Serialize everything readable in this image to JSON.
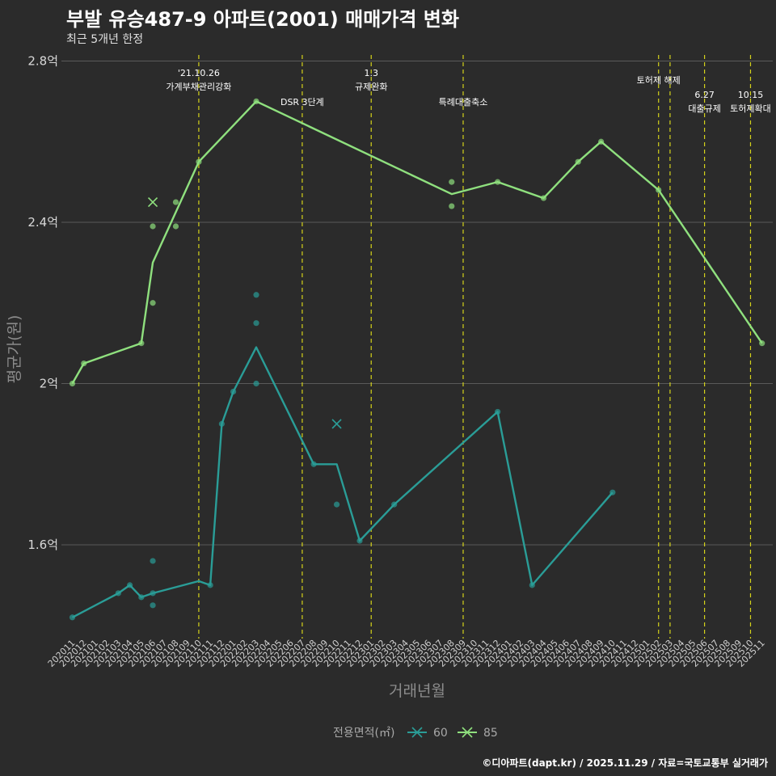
{
  "title": "부발 유승487-9 아파트(2001) 매매가격 변화",
  "subtitle": "최근 5개년 한정",
  "footer": "©디아파트(dapt.kr) / 2025.11.29 / 자료=국토교통부 실거래가",
  "chart_data": {
    "type": "line",
    "title": "부발 유승487-9 아파트(2001) 매매가격 변화",
    "subtitle": "최근 5개년 한정",
    "xlabel": "거래년월",
    "ylabel": "평균가(원)",
    "ylim": [
      1.38,
      2.8
    ],
    "y_ticks": [
      {
        "value": 1.6,
        "label": "1.6억"
      },
      {
        "value": 2.0,
        "label": "2억"
      },
      {
        "value": 2.4,
        "label": "2.4억"
      },
      {
        "value": 2.8,
        "label": "2.8억"
      }
    ],
    "grid": true,
    "categories": [
      "202011",
      "202012",
      "202101",
      "202102",
      "202103",
      "202104",
      "202105",
      "202106",
      "202107",
      "202108",
      "202109",
      "202110",
      "202111",
      "202112",
      "202201",
      "202202",
      "202203",
      "202204",
      "202205",
      "202206",
      "202207",
      "202208",
      "202209",
      "202210",
      "202211",
      "202212",
      "202301",
      "202302",
      "202303",
      "202304",
      "202305",
      "202306",
      "202307",
      "202308",
      "202309",
      "202310",
      "202311",
      "202312",
      "202401",
      "202402",
      "202403",
      "202404",
      "202405",
      "202406",
      "202407",
      "202408",
      "202409",
      "202410",
      "202411",
      "202412",
      "202501",
      "202502",
      "202503",
      "202504",
      "202505",
      "202506",
      "202507",
      "202508",
      "202509",
      "202510",
      "202511"
    ],
    "events": [
      {
        "month": "202110",
        "lines": [
          "'21.10.26",
          "가계부채관리강화"
        ]
      },
      {
        "month": "202207",
        "lines": [
          "DSR 3단계"
        ]
      },
      {
        "month": "202301",
        "lines": [
          "1.3",
          "규제완화"
        ]
      },
      {
        "month": "202309",
        "lines": [
          "특례대출축소"
        ]
      },
      {
        "month": "202502",
        "lines": [
          "토허제 해제"
        ]
      },
      {
        "month": "202503",
        "lines": []
      },
      {
        "month": "202506",
        "lines": [
          "6.27",
          "대출규제"
        ]
      },
      {
        "month": "202510",
        "lines": [
          "10.15",
          "토허제확대"
        ]
      }
    ],
    "legend": {
      "title": "전용면적(㎡)",
      "position": "bottom"
    },
    "series": [
      {
        "name": "60",
        "color": "#2a9d97",
        "line": [
          [
            "202011",
            1.42
          ],
          [
            "202103",
            1.48
          ],
          [
            "202104",
            1.5
          ],
          [
            "202105",
            1.47
          ],
          [
            "202106",
            1.48
          ],
          [
            "202110",
            1.51
          ],
          [
            "202111",
            1.5
          ],
          [
            "202112",
            1.9
          ],
          [
            "202201",
            1.98
          ],
          [
            "202203",
            2.09
          ],
          [
            "202208",
            1.8
          ],
          [
            "202210",
            1.8
          ],
          [
            "202212",
            1.61
          ],
          [
            "202303",
            1.7
          ],
          [
            "202312",
            1.93
          ],
          [
            "202403",
            1.5
          ],
          [
            "202410",
            1.73
          ]
        ],
        "points": [
          [
            "202011",
            1.42
          ],
          [
            "202103",
            1.48
          ],
          [
            "202104",
            1.5
          ],
          [
            "202105",
            1.47
          ],
          [
            "202106",
            1.56
          ],
          [
            "202106",
            1.48
          ],
          [
            "202106",
            1.45
          ],
          [
            "202111",
            1.5
          ],
          [
            "202112",
            1.9
          ],
          [
            "202201",
            1.98
          ],
          [
            "202203",
            2.22
          ],
          [
            "202203",
            2.15
          ],
          [
            "202203",
            2.0
          ],
          [
            "202208",
            1.8
          ],
          [
            "202210",
            1.7
          ],
          [
            "202212",
            1.61
          ],
          [
            "202303",
            1.7
          ],
          [
            "202312",
            1.93
          ],
          [
            "202403",
            1.5
          ],
          [
            "202410",
            1.73
          ]
        ],
        "crosses": [
          [
            "202210",
            1.9
          ]
        ]
      },
      {
        "name": "85",
        "color": "#8fe07e",
        "line": [
          [
            "202011",
            2.0
          ],
          [
            "202012",
            2.05
          ],
          [
            "202105",
            2.1
          ],
          [
            "202106",
            2.3
          ],
          [
            "202110",
            2.55
          ],
          [
            "202203",
            2.7
          ],
          [
            "202308",
            2.47
          ],
          [
            "202312",
            2.5
          ],
          [
            "202404",
            2.46
          ],
          [
            "202407",
            2.55
          ],
          [
            "202409",
            2.6
          ],
          [
            "202502",
            2.48
          ],
          [
            "202511",
            2.1
          ]
        ],
        "points": [
          [
            "202011",
            2.0
          ],
          [
            "202012",
            2.05
          ],
          [
            "202105",
            2.1
          ],
          [
            "202106",
            2.39
          ],
          [
            "202106",
            2.2
          ],
          [
            "202108",
            2.45
          ],
          [
            "202108",
            2.39
          ],
          [
            "202110",
            2.55
          ],
          [
            "202203",
            2.7
          ],
          [
            "202308",
            2.5
          ],
          [
            "202308",
            2.44
          ],
          [
            "202312",
            2.5
          ],
          [
            "202404",
            2.46
          ],
          [
            "202407",
            2.55
          ],
          [
            "202409",
            2.6
          ],
          [
            "202502",
            2.48
          ],
          [
            "202511",
            2.1
          ]
        ],
        "crosses": [
          [
            "202106",
            2.45
          ]
        ]
      }
    ]
  }
}
